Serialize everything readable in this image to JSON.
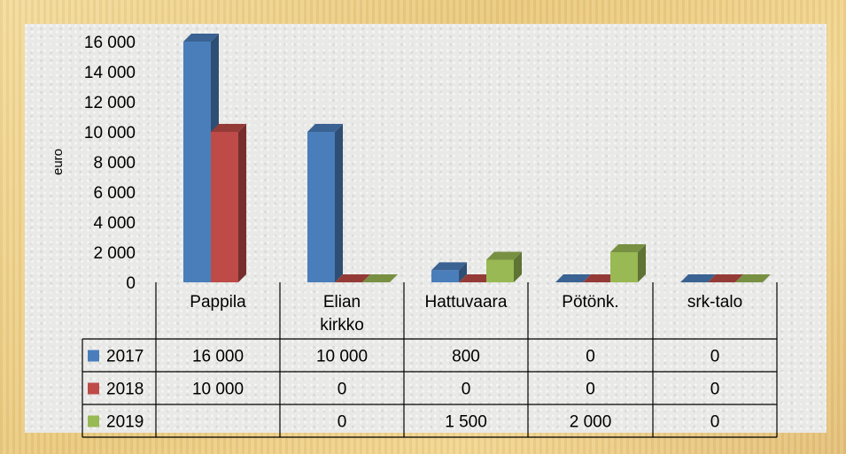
{
  "chart_data": {
    "type": "bar",
    "ylabel": "euro",
    "ylim": [
      0,
      16000
    ],
    "y_ticks": [
      "0",
      "2 000",
      "4 000",
      "6 000",
      "8 000",
      "10 000",
      "12 000",
      "14 000",
      "16 000"
    ],
    "categories": [
      [
        "Pappila"
      ],
      [
        "Elian",
        "kirkko"
      ],
      [
        "Hattuvaara"
      ],
      [
        "Pötönk."
      ],
      [
        "srk-talo"
      ]
    ],
    "series": [
      {
        "name": "2017",
        "color": "#4a7ebb",
        "values": [
          16000,
          10000,
          800,
          0,
          0
        ],
        "labels": [
          "16 000",
          "10 000",
          "800",
          "0",
          "0"
        ]
      },
      {
        "name": "2018",
        "color": "#be4b48",
        "values": [
          10000,
          0,
          0,
          0,
          0
        ],
        "labels": [
          "10 000",
          "0",
          "0",
          "0",
          "0"
        ]
      },
      {
        "name": "2019",
        "color": "#98b954",
        "values": [
          null,
          0,
          1500,
          2000,
          0
        ],
        "labels": [
          "",
          "0",
          "1 500",
          "2 000",
          "0"
        ]
      }
    ],
    "data_table": true,
    "grid": false
  }
}
